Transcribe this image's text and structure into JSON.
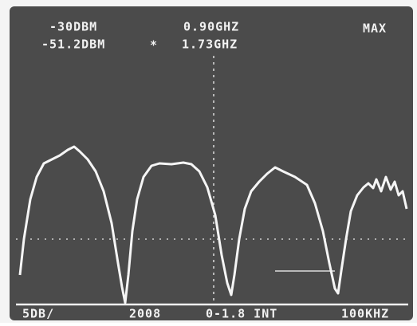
{
  "header": {
    "ref_level": "-30DBM",
    "center_freq": "0.90GHZ",
    "mode": "MAX",
    "marker_level": "-51.2DBM",
    "marker_symbol": "*",
    "marker_freq": "1.73GHZ"
  },
  "footer": {
    "scale": "5DB/",
    "span": "2008",
    "range": "0-1.8 INT",
    "bandwidth": "100KHZ"
  }
}
